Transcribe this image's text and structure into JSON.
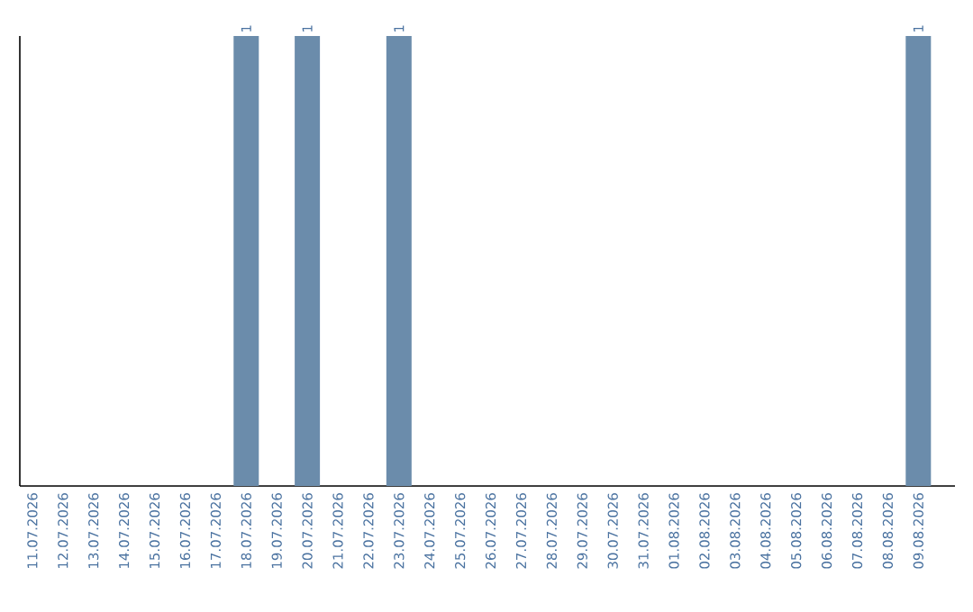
{
  "chart_data": {
    "type": "bar",
    "categories": [
      "11.07.2026",
      "12.07.2026",
      "13.07.2026",
      "14.07.2026",
      "15.07.2026",
      "16.07.2026",
      "17.07.2026",
      "18.07.2026",
      "19.07.2026",
      "20.07.2026",
      "21.07.2026",
      "22.07.2026",
      "23.07.2026",
      "24.07.2026",
      "25.07.2026",
      "26.07.2026",
      "27.07.2026",
      "28.07.2026",
      "29.07.2026",
      "30.07.2026",
      "31.07.2026",
      "01.08.2026",
      "02.08.2026",
      "03.08.2026",
      "04.08.2026",
      "05.08.2026",
      "06.08.2026",
      "07.08.2026",
      "08.08.2026",
      "09.08.2026"
    ],
    "values": [
      0,
      0,
      0,
      0,
      0,
      0,
      0,
      1,
      0,
      1,
      0,
      0,
      1,
      0,
      0,
      0,
      0,
      0,
      0,
      0,
      0,
      0,
      0,
      0,
      0,
      0,
      0,
      0,
      0,
      1
    ],
    "value_labels": [
      null,
      null,
      null,
      null,
      null,
      null,
      null,
      "1",
      null,
      "1",
      null,
      null,
      "1",
      null,
      null,
      null,
      null,
      null,
      null,
      null,
      null,
      null,
      null,
      null,
      null,
      null,
      null,
      null,
      null,
      "1"
    ],
    "color": "#6b8cab",
    "ylim": [
      0,
      1
    ],
    "tick_labels": "x",
    "grid": false
  }
}
